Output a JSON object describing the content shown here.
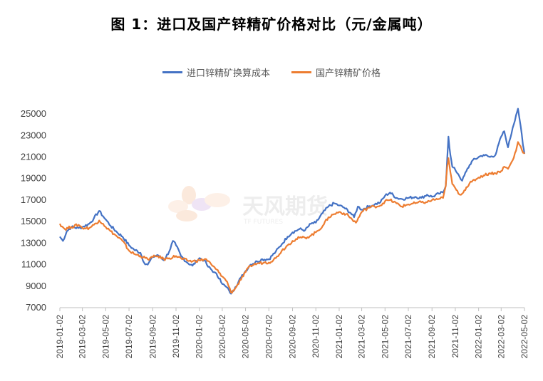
{
  "chart_data": {
    "type": "line",
    "title": "图 1：进口及国产锌精矿价格对比（元/金属吨）",
    "watermark": {
      "name": "天风期货",
      "sub": "TF FUTURES"
    },
    "legend": "top-center",
    "ylim": [
      7000,
      26000
    ],
    "yticks": [
      7000,
      9000,
      11000,
      13000,
      15000,
      17000,
      19000,
      21000,
      23000,
      25000
    ],
    "xticks": [
      "2019-01-02",
      "2019-03-02",
      "2019-05-02",
      "2019-07-02",
      "2019-09-02",
      "2019-11-02",
      "2020-01-02",
      "2020-03-02",
      "2020-05-02",
      "2020-07-02",
      "2020-09-02",
      "2020-11-02",
      "2021-01-02",
      "2021-03-02",
      "2021-05-02",
      "2021-07-02",
      "2021-09-02",
      "2021-11-02",
      "2022-01-02",
      "2022-03-02",
      "2022-05-02"
    ],
    "colors": {
      "import": "#4472C4",
      "domestic": "#ED7D31"
    },
    "series": [
      {
        "name": "进口锌精矿换算成本",
        "color": "#4472C4",
        "points": [
          [
            "2019-01-02",
            13600
          ],
          [
            "2019-01-10",
            13200
          ],
          [
            "2019-01-20",
            14100
          ],
          [
            "2019-02-01",
            14500
          ],
          [
            "2019-02-20",
            14400
          ],
          [
            "2019-03-02",
            14500
          ],
          [
            "2019-03-20",
            14800
          ],
          [
            "2019-04-01",
            15300
          ],
          [
            "2019-04-15",
            16000
          ],
          [
            "2019-04-25",
            15500
          ],
          [
            "2019-05-02",
            15200
          ],
          [
            "2019-05-15",
            14600
          ],
          [
            "2019-06-01",
            14000
          ],
          [
            "2019-06-15",
            13600
          ],
          [
            "2019-07-02",
            12800
          ],
          [
            "2019-07-15",
            12400
          ],
          [
            "2019-08-01",
            12100
          ],
          [
            "2019-08-10",
            11200
          ],
          [
            "2019-08-20",
            11000
          ],
          [
            "2019-09-02",
            11700
          ],
          [
            "2019-09-15",
            11900
          ],
          [
            "2019-10-01",
            11400
          ],
          [
            "2019-10-15",
            12200
          ],
          [
            "2019-10-25",
            13200
          ],
          [
            "2019-11-02",
            12800
          ],
          [
            "2019-11-15",
            11800
          ],
          [
            "2019-12-01",
            11200
          ],
          [
            "2019-12-15",
            10900
          ],
          [
            "2020-01-02",
            11600
          ],
          [
            "2020-01-15",
            11400
          ],
          [
            "2020-01-25",
            10800
          ],
          [
            "2020-02-10",
            10300
          ],
          [
            "2020-02-25",
            9700
          ],
          [
            "2020-03-02",
            9200
          ],
          [
            "2020-03-10",
            9000
          ],
          [
            "2020-03-20",
            8600
          ],
          [
            "2020-03-25",
            8300
          ],
          [
            "2020-04-05",
            8900
          ],
          [
            "2020-04-20",
            9800
          ],
          [
            "2020-05-02",
            10400
          ],
          [
            "2020-05-15",
            11000
          ],
          [
            "2020-06-01",
            11300
          ],
          [
            "2020-06-15",
            11500
          ],
          [
            "2020-07-02",
            11500
          ],
          [
            "2020-07-20",
            12200
          ],
          [
            "2020-08-05",
            12900
          ],
          [
            "2020-08-20",
            13600
          ],
          [
            "2020-09-02",
            14000
          ],
          [
            "2020-09-20",
            14300
          ],
          [
            "2020-10-05",
            14200
          ],
          [
            "2020-10-20",
            14800
          ],
          [
            "2020-11-02",
            14900
          ],
          [
            "2020-11-20",
            15800
          ],
          [
            "2020-12-05",
            16400
          ],
          [
            "2020-12-20",
            16700
          ],
          [
            "2021-01-02",
            16500
          ],
          [
            "2021-01-15",
            16300
          ],
          [
            "2021-02-01",
            15800
          ],
          [
            "2021-02-10",
            15400
          ],
          [
            "2021-02-20",
            16400
          ],
          [
            "2021-03-02",
            16100
          ],
          [
            "2021-03-20",
            16400
          ],
          [
            "2021-04-05",
            16600
          ],
          [
            "2021-04-20",
            16800
          ],
          [
            "2021-05-02",
            17400
          ],
          [
            "2021-05-15",
            17700
          ],
          [
            "2021-06-01",
            17200
          ],
          [
            "2021-06-15",
            17100
          ],
          [
            "2021-07-02",
            17200
          ],
          [
            "2021-07-20",
            17300
          ],
          [
            "2021-08-05",
            17200
          ],
          [
            "2021-08-20",
            17500
          ],
          [
            "2021-09-02",
            17300
          ],
          [
            "2021-09-20",
            17600
          ],
          [
            "2021-10-01",
            17700
          ],
          [
            "2021-10-08",
            18300
          ],
          [
            "2021-10-12",
            21000
          ],
          [
            "2021-10-15",
            22900
          ],
          [
            "2021-10-20",
            21200
          ],
          [
            "2021-10-25",
            20100
          ],
          [
            "2021-11-02",
            19800
          ],
          [
            "2021-11-10",
            19400
          ],
          [
            "2021-11-20",
            18800
          ],
          [
            "2021-12-01",
            19700
          ],
          [
            "2021-12-15",
            20600
          ],
          [
            "2022-01-02",
            21000
          ],
          [
            "2022-01-15",
            21200
          ],
          [
            "2022-02-01",
            21000
          ],
          [
            "2022-02-15",
            21200
          ],
          [
            "2022-03-02",
            22900
          ],
          [
            "2022-03-10",
            23400
          ],
          [
            "2022-03-20",
            21900
          ],
          [
            "2022-04-01",
            23700
          ],
          [
            "2022-04-10",
            24900
          ],
          [
            "2022-04-15",
            25500
          ],
          [
            "2022-04-22",
            23900
          ],
          [
            "2022-04-28",
            22100
          ],
          [
            "2022-05-02",
            21300
          ]
        ]
      },
      {
        "name": "国产锌精矿价格",
        "color": "#ED7D31",
        "points": [
          [
            "2019-01-02",
            14800
          ],
          [
            "2019-01-15",
            14300
          ],
          [
            "2019-02-01",
            14500
          ],
          [
            "2019-02-20",
            14700
          ],
          [
            "2019-03-02",
            14400
          ],
          [
            "2019-03-20",
            14400
          ],
          [
            "2019-04-01",
            14700
          ],
          [
            "2019-04-15",
            15100
          ],
          [
            "2019-04-25",
            14800
          ],
          [
            "2019-05-02",
            14500
          ],
          [
            "2019-05-15",
            14100
          ],
          [
            "2019-06-01",
            13600
          ],
          [
            "2019-06-15",
            13200
          ],
          [
            "2019-07-02",
            12300
          ],
          [
            "2019-07-15",
            12000
          ],
          [
            "2019-08-01",
            11800
          ],
          [
            "2019-08-20",
            11500
          ],
          [
            "2019-09-02",
            11700
          ],
          [
            "2019-09-15",
            11800
          ],
          [
            "2019-10-01",
            11500
          ],
          [
            "2019-10-15",
            11600
          ],
          [
            "2019-11-02",
            11800
          ],
          [
            "2019-11-20",
            11500
          ],
          [
            "2019-12-01",
            11400
          ],
          [
            "2019-12-15",
            11300
          ],
          [
            "2020-01-02",
            11400
          ],
          [
            "2020-01-20",
            11500
          ],
          [
            "2020-02-05",
            10900
          ],
          [
            "2020-02-25",
            10200
          ],
          [
            "2020-03-02",
            9900
          ],
          [
            "2020-03-15",
            9400
          ],
          [
            "2020-03-25",
            8400
          ],
          [
            "2020-04-05",
            8800
          ],
          [
            "2020-04-20",
            9600
          ],
          [
            "2020-05-02",
            10300
          ],
          [
            "2020-05-15",
            10900
          ],
          [
            "2020-06-01",
            11100
          ],
          [
            "2020-06-20",
            11200
          ],
          [
            "2020-07-02",
            11200
          ],
          [
            "2020-07-20",
            11600
          ],
          [
            "2020-08-05",
            12300
          ],
          [
            "2020-08-20",
            12800
          ],
          [
            "2020-09-02",
            13200
          ],
          [
            "2020-09-20",
            13500
          ],
          [
            "2020-10-05",
            13500
          ],
          [
            "2020-10-20",
            13700
          ],
          [
            "2020-11-02",
            14000
          ],
          [
            "2020-11-20",
            14600
          ],
          [
            "2020-12-05",
            15400
          ],
          [
            "2020-12-20",
            15700
          ],
          [
            "2021-01-02",
            15900
          ],
          [
            "2021-01-20",
            15700
          ],
          [
            "2021-02-05",
            15200
          ],
          [
            "2021-02-15",
            14900
          ],
          [
            "2021-03-02",
            15900
          ],
          [
            "2021-03-20",
            16300
          ],
          [
            "2021-04-05",
            16400
          ],
          [
            "2021-04-20",
            16500
          ],
          [
            "2021-05-02",
            16900
          ],
          [
            "2021-05-15",
            17000
          ],
          [
            "2021-06-01",
            16700
          ],
          [
            "2021-06-15",
            16400
          ],
          [
            "2021-07-02",
            16600
          ],
          [
            "2021-07-20",
            16700
          ],
          [
            "2021-08-05",
            16800
          ],
          [
            "2021-08-20",
            16800
          ],
          [
            "2021-09-02",
            17000
          ],
          [
            "2021-09-20",
            17100
          ],
          [
            "2021-10-01",
            17200
          ],
          [
            "2021-10-08",
            18300
          ],
          [
            "2021-10-12",
            20200
          ],
          [
            "2021-10-15",
            20900
          ],
          [
            "2021-10-20",
            19600
          ],
          [
            "2021-10-25",
            18500
          ],
          [
            "2021-11-02",
            18100
          ],
          [
            "2021-11-10",
            17600
          ],
          [
            "2021-11-20",
            17600
          ],
          [
            "2021-12-01",
            18200
          ],
          [
            "2021-12-15",
            18700
          ],
          [
            "2022-01-02",
            19100
          ],
          [
            "2022-01-15",
            19300
          ],
          [
            "2022-02-01",
            19500
          ],
          [
            "2022-02-15",
            19500
          ],
          [
            "2022-03-02",
            19700
          ],
          [
            "2022-03-10",
            20100
          ],
          [
            "2022-03-20",
            19900
          ],
          [
            "2022-04-01",
            20700
          ],
          [
            "2022-04-10",
            21600
          ],
          [
            "2022-04-15",
            22400
          ],
          [
            "2022-04-22",
            22000
          ],
          [
            "2022-04-28",
            21400
          ],
          [
            "2022-05-02",
            21300
          ]
        ]
      }
    ]
  }
}
